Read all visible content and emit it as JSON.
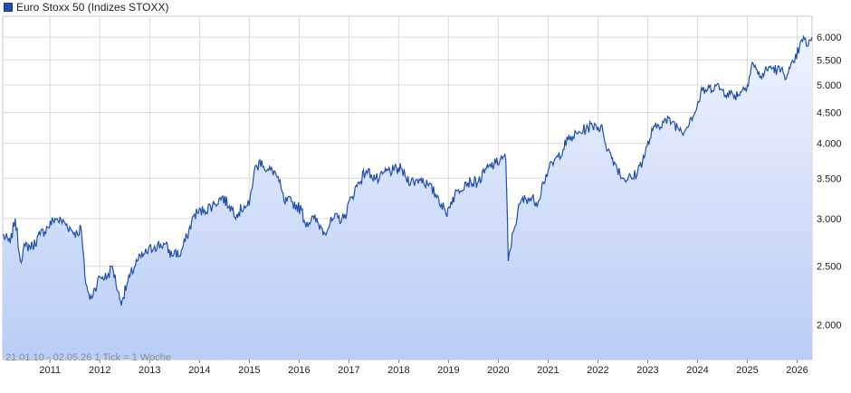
{
  "chart_data": {
    "type": "area",
    "title": "Euro Stoxx 50 (Indizes STOXX)",
    "legend": {
      "label": "Euro Stoxx 50 (Indizes STOXX)",
      "placement": "top-left"
    },
    "series": [
      {
        "name": "Euro Stoxx 50 (Indizes STOXX)",
        "x": [
          2010.05,
          2010.2,
          2010.3,
          2010.4,
          2010.5,
          2010.65,
          2010.8,
          2010.95,
          2011.1,
          2011.3,
          2011.45,
          2011.55,
          2011.62,
          2011.7,
          2011.8,
          2011.9,
          2012.0,
          2012.15,
          2012.25,
          2012.4,
          2012.45,
          2012.6,
          2012.75,
          2012.9,
          2013.1,
          2013.3,
          2013.45,
          2013.5,
          2013.6,
          2013.75,
          2013.9,
          2014.1,
          2014.3,
          2014.45,
          2014.6,
          2014.75,
          2014.9,
          2015.0,
          2015.1,
          2015.25,
          2015.35,
          2015.5,
          2015.6,
          2015.7,
          2015.85,
          2016.05,
          2016.12,
          2016.3,
          2016.45,
          2016.5,
          2016.7,
          2016.9,
          2017.05,
          2017.2,
          2017.35,
          2017.45,
          2017.6,
          2017.75,
          2017.9,
          2018.05,
          2018.15,
          2018.3,
          2018.45,
          2018.6,
          2018.8,
          2018.95,
          2019.05,
          2019.2,
          2019.35,
          2019.45,
          2019.6,
          2019.8,
          2019.95,
          2020.1,
          2020.15,
          2020.2,
          2020.3,
          2020.45,
          2020.6,
          2020.8,
          2020.9,
          2021.0,
          2021.2,
          2021.4,
          2021.5,
          2021.6,
          2021.8,
          2021.95,
          2022.1,
          2022.2,
          2022.35,
          2022.5,
          2022.7,
          2022.8,
          2022.95,
          2023.1,
          2023.3,
          2023.5,
          2023.6,
          2023.75,
          2023.85,
          2023.95,
          2024.1,
          2024.2,
          2024.35,
          2024.5,
          2024.6,
          2024.75,
          2024.9,
          2025.0,
          2025.1,
          2025.18,
          2025.25,
          2025.45,
          2025.6,
          2025.8,
          2025.95,
          2026.05,
          2026.15,
          2026.22,
          2026.3
        ],
        "values": [
          2820,
          2730,
          3000,
          2560,
          2700,
          2700,
          2820,
          2900,
          3000,
          2950,
          2860,
          2830,
          2900,
          2400,
          2200,
          2300,
          2400,
          2400,
          2500,
          2200,
          2200,
          2400,
          2550,
          2620,
          2700,
          2720,
          2600,
          2650,
          2600,
          2800,
          3050,
          3100,
          3170,
          3260,
          3150,
          3050,
          3150,
          3150,
          3600,
          3750,
          3600,
          3600,
          3450,
          3200,
          3200,
          3100,
          2950,
          3000,
          2900,
          2850,
          3000,
          3000,
          3250,
          3450,
          3600,
          3550,
          3470,
          3600,
          3600,
          3630,
          3500,
          3450,
          3500,
          3400,
          3250,
          3050,
          3200,
          3350,
          3450,
          3450,
          3450,
          3650,
          3700,
          3800,
          3750,
          2550,
          2850,
          3200,
          3250,
          3200,
          3450,
          3600,
          3800,
          4050,
          4100,
          4150,
          4250,
          4300,
          4200,
          3900,
          3700,
          3500,
          3500,
          3600,
          3850,
          4200,
          4350,
          4350,
          4250,
          4200,
          4400,
          4500,
          4900,
          4900,
          5000,
          4900,
          4850,
          4800,
          4900,
          5000,
          5450,
          5300,
          5150,
          5350,
          5300,
          5200,
          5450,
          5800,
          5950,
          5800,
          6000
        ]
      }
    ],
    "x_tick_labels": [
      "2011",
      "2012",
      "2013",
      "2014",
      "2015",
      "2016",
      "2017",
      "2018",
      "2019",
      "2020",
      "2021",
      "2022",
      "2023",
      "2024",
      "2025",
      "2026"
    ],
    "x_ticks": [
      2011,
      2012,
      2013,
      2014,
      2015,
      2016,
      2017,
      2018,
      2019,
      2020,
      2021,
      2022,
      2023,
      2024,
      2025,
      2026
    ],
    "y_tick_labels": [
      "2.000",
      "2.500",
      "3.000",
      "3.500",
      "4.000",
      "4.500",
      "5.000",
      "5.500",
      "6.000"
    ],
    "y_ticks": [
      2000,
      2500,
      3000,
      3500,
      4000,
      4500,
      5000,
      5500,
      6000
    ],
    "y_scale": "log",
    "ylim": [
      1750,
      6500
    ],
    "xlim": [
      2010.05,
      2026.3
    ],
    "grid": true,
    "footnote": "21.01.10 - 02.05.26   1 Tick = 1 Woche",
    "colors": {
      "line": "#1f4fb0",
      "area_top": "#eef3fe",
      "area_bottom": "#b9cdf6",
      "grid": "#dcdcdc"
    }
  }
}
